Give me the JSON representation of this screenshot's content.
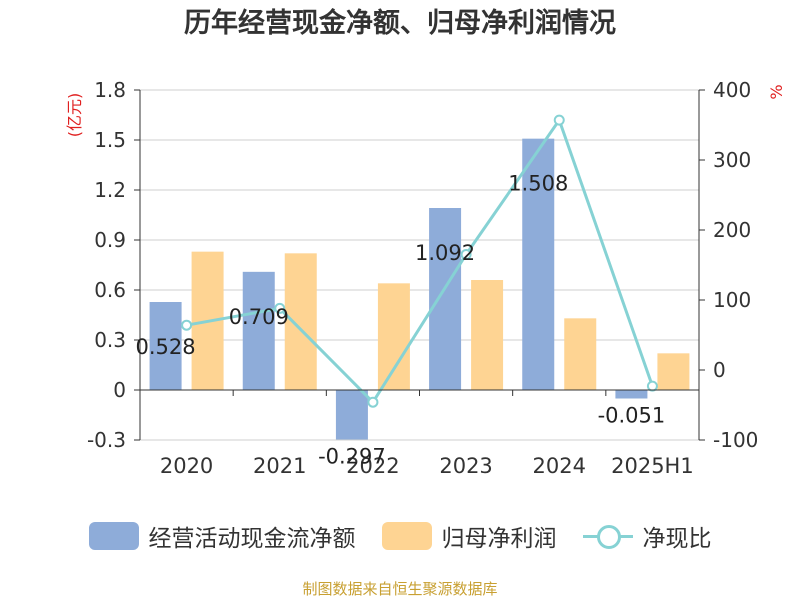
{
  "chart_data": {
    "type": "bar",
    "title": "历年经营现金净额、归母净利润情况",
    "categories": [
      "2020",
      "2021",
      "2022",
      "2023",
      "2024",
      "2025H1"
    ],
    "y_left": {
      "unit_label": "(亿元)",
      "range": [
        -0.3,
        1.8
      ],
      "ticks": [
        "1.8",
        "1.5",
        "1.2",
        "0.9",
        "0.6",
        "0.3",
        "0",
        "-0.3"
      ],
      "tick_values": [
        1.8,
        1.5,
        1.2,
        0.9,
        0.6,
        0.3,
        0,
        -0.3
      ]
    },
    "y_right": {
      "unit_label": "%",
      "range": [
        -100,
        400
      ],
      "ticks": [
        "400",
        "300",
        "200",
        "100",
        "0",
        "-100"
      ],
      "tick_values": [
        400,
        300,
        200,
        100,
        0,
        -100
      ]
    },
    "series": [
      {
        "name": "经营活动现金流净额",
        "kind": "bar",
        "axis": "left",
        "color": "#8eacd9",
        "values": [
          0.528,
          0.709,
          -0.297,
          1.092,
          1.508,
          -0.051
        ],
        "labels": [
          "0.528",
          "0.709",
          "-0.297",
          "1.092",
          "1.508",
          "-0.051"
        ]
      },
      {
        "name": "归母净利润",
        "kind": "bar",
        "axis": "left",
        "color": "#fed493",
        "values": [
          0.83,
          0.82,
          0.64,
          0.66,
          0.43,
          0.22
        ]
      },
      {
        "name": "净现比",
        "kind": "line",
        "axis": "right",
        "color": "#86d2d4",
        "values": [
          64,
          88,
          -46,
          165,
          357,
          -23
        ]
      }
    ],
    "grid": true,
    "legend_position": "bottom"
  },
  "source": "制图数据来自恒生聚源数据库"
}
